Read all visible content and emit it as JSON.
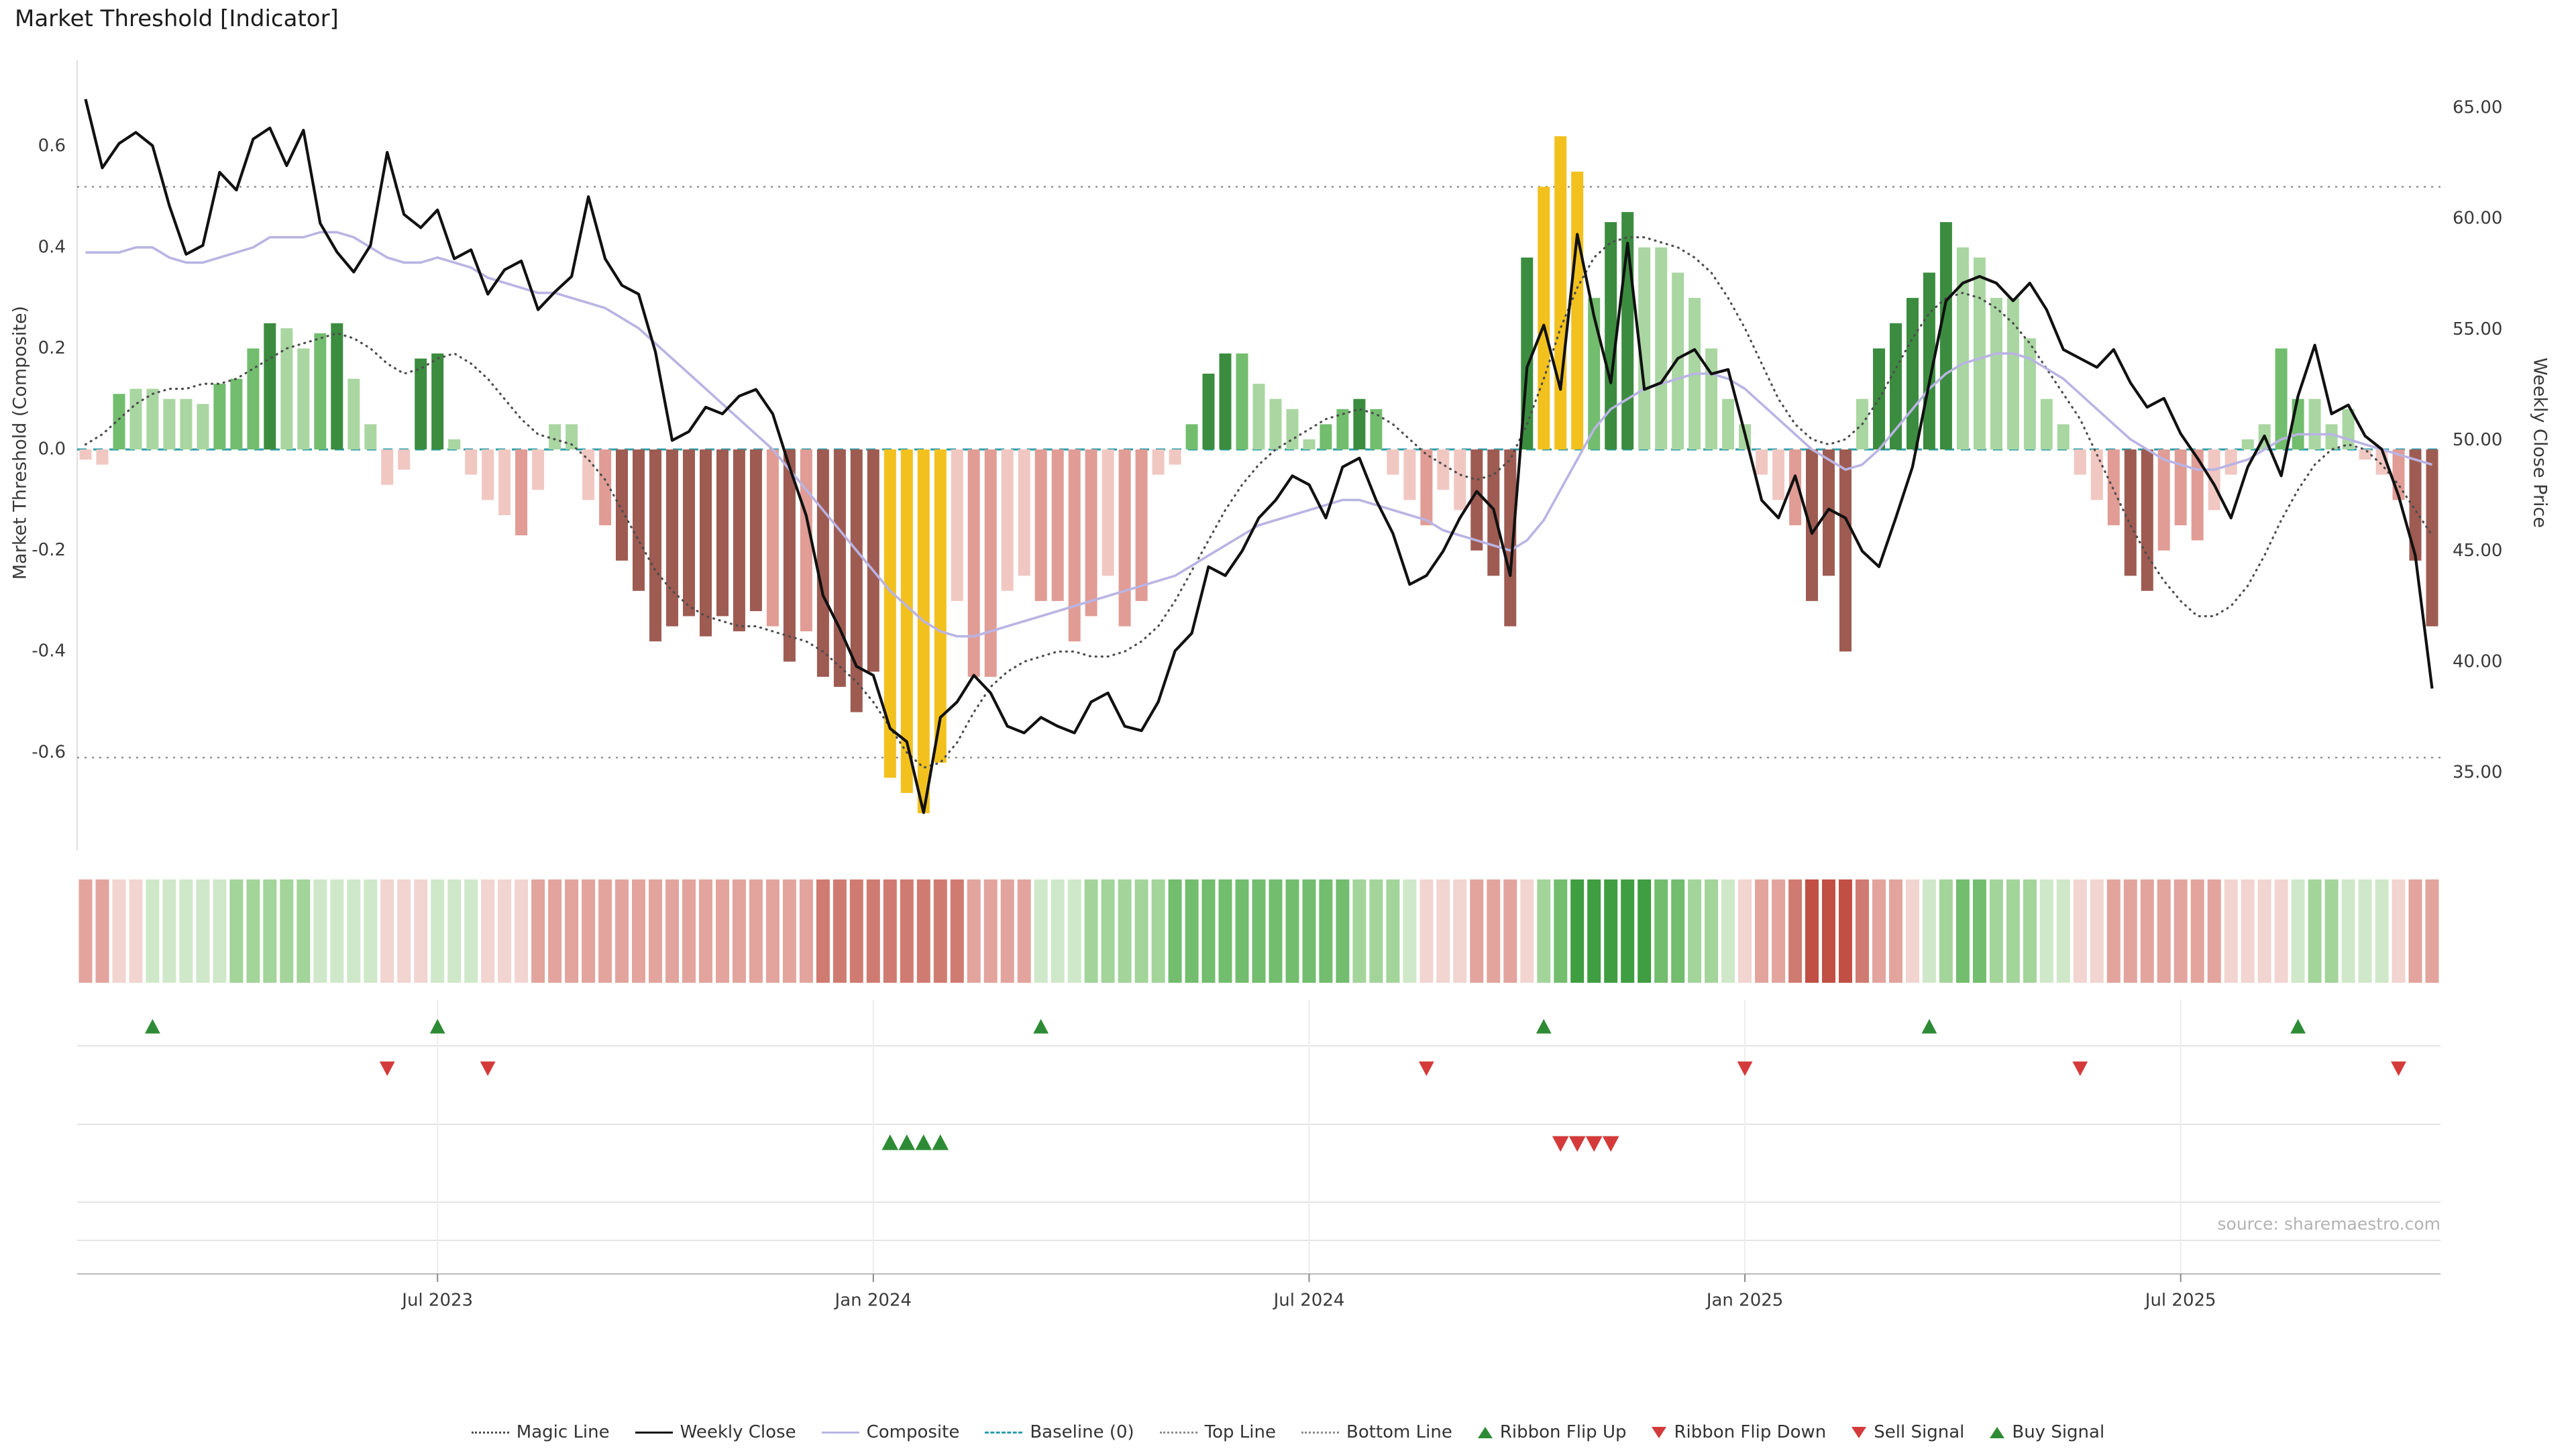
{
  "title": "Market Threshold [Indicator]",
  "source": "source: sharemaestro.com",
  "colors": {
    "bars": {
      "lg": "#a9d6a1",
      "g": "#72bd6e",
      "dg": "#3b8c3f",
      "lp": "#f1c7c2",
      "p": "#e09c95",
      "dp": "#9e5b52",
      "au": "#f2c11e"
    },
    "ribbon": {
      "1": "#cfe8c9",
      "2": "#a3d49a",
      "3": "#72bd6e",
      "4": "#3f9e41",
      "-1": "#f2d4d0",
      "-2": "#e2a49d",
      "-3": "#d07b71",
      "-4": "#c14f44"
    },
    "weekly_close": "#111111",
    "composite": "#b9b4e3",
    "magic": "#4d4d4d",
    "baseline": "#2e9eaa",
    "top_bottom": "#8c8c8c",
    "buy": "#2e8b35",
    "sell": "#d43a3a",
    "grid": "#e4e4e4",
    "axis": "#bbbbbb"
  },
  "legend": [
    {
      "label": "Magic Line",
      "marker": "line-dotted",
      "color": "#4d4d4d"
    },
    {
      "label": "Weekly Close",
      "marker": "line-solid",
      "color": "#111111"
    },
    {
      "label": "Composite",
      "marker": "line-solid",
      "color": "#b9b4e3"
    },
    {
      "label": "Baseline (0)",
      "marker": "line-dashed",
      "color": "#2e9eaa"
    },
    {
      "label": "Top Line",
      "marker": "line-dotted",
      "color": "#8c8c8c"
    },
    {
      "label": "Bottom Line",
      "marker": "line-dotted",
      "color": "#8c8c8c"
    },
    {
      "label": "Ribbon Flip Up",
      "marker": "triangle-up",
      "color": "#2e8b35"
    },
    {
      "label": "Ribbon Flip Down",
      "marker": "triangle-down",
      "color": "#d43a3a"
    },
    {
      "label": "Sell Signal",
      "marker": "triangle-down",
      "color": "#d43a3a"
    },
    {
      "label": "Buy Signal",
      "marker": "triangle-up",
      "color": "#2e8b35"
    }
  ],
  "chart_data": {
    "type": "bar+line",
    "title": "Market Threshold [Indicator]",
    "frequency": "weekly",
    "x_tick_labels": [
      "Jul 2023",
      "Jan 2024",
      "Jul 2024",
      "Jan 2025",
      "Jul 2025"
    ],
    "x_tick_indices": [
      21,
      47,
      73,
      99,
      125
    ],
    "left_axis": {
      "label": "Market Threshold (Composite)",
      "tick_values": [
        0.6,
        0.4,
        0.2,
        0,
        -0.2,
        -0.4,
        -0.6
      ],
      "tick_labels": [
        "0.6",
        "0.4",
        "0.2",
        "0.0",
        "-0.2",
        "-0.4",
        "-0.6"
      ],
      "range": [
        -0.79,
        0.73
      ]
    },
    "right_axis": {
      "label": "Weekly Close Price",
      "tick_values": [
        65,
        60,
        55,
        50,
        45,
        40,
        35
      ],
      "tick_labels": [
        "65.00",
        "60.00",
        "55.00",
        "50.00",
        "45.00",
        "40.00",
        "35.00"
      ],
      "range": [
        32.5,
        66.5
      ]
    },
    "reference_lines": {
      "top_line": 0.52,
      "bottom_line": -0.61,
      "baseline": 0
    },
    "composite_bars": {
      "values": [
        -0.02,
        -0.03,
        0.11,
        0.12,
        0.12,
        0.1,
        0.1,
        0.09,
        0.13,
        0.14,
        0.2,
        0.25,
        0.24,
        0.2,
        0.23,
        0.25,
        0.14,
        0.05,
        -0.07,
        -0.04,
        0.18,
        0.19,
        0.02,
        -0.05,
        -0.1,
        -0.13,
        -0.17,
        -0.08,
        0.05,
        0.05,
        -0.1,
        -0.15,
        -0.22,
        -0.28,
        -0.38,
        -0.35,
        -0.33,
        -0.37,
        -0.33,
        -0.36,
        -0.32,
        -0.35,
        -0.42,
        -0.36,
        -0.45,
        -0.47,
        -0.52,
        -0.44,
        -0.65,
        -0.68,
        -0.72,
        -0.62,
        -0.3,
        -0.45,
        -0.45,
        -0.28,
        -0.25,
        -0.3,
        -0.3,
        -0.38,
        -0.33,
        -0.25,
        -0.35,
        -0.3,
        -0.05,
        -0.03,
        0.05,
        0.15,
        0.19,
        0.19,
        0.13,
        0.1,
        0.08,
        0.02,
        0.05,
        0.08,
        0.1,
        0.08,
        -0.05,
        -0.1,
        -0.15,
        -0.08,
        -0.12,
        -0.2,
        -0.25,
        -0.35,
        0.38,
        0.52,
        0.62,
        0.55,
        0.3,
        0.45,
        0.47,
        0.4,
        0.4,
        0.35,
        0.3,
        0.2,
        0.1,
        0.05,
        -0.05,
        -0.1,
        -0.15,
        -0.3,
        -0.25,
        -0.4,
        0.1,
        0.2,
        0.25,
        0.3,
        0.35,
        0.45,
        0.4,
        0.38,
        0.3,
        0.3,
        0.22,
        0.1,
        0.05,
        -0.05,
        -0.1,
        -0.15,
        -0.25,
        -0.28,
        -0.2,
        -0.15,
        -0.18,
        -0.12,
        -0.05,
        0.02,
        0.05,
        0.2,
        0.1,
        0.1,
        0.05,
        0.08,
        -0.02,
        -0.05,
        -0.1,
        -0.22,
        -0.35
      ],
      "colors": [
        "lp",
        "lp",
        "g",
        "lg",
        "lg",
        "lg",
        "lg",
        "lg",
        "g",
        "g",
        "g",
        "dg",
        "lg",
        "lg",
        "g",
        "dg",
        "lg",
        "lg",
        "lp",
        "lp",
        "dg",
        "dg",
        "lg",
        "lp",
        "lp",
        "lp",
        "p",
        "lp",
        "lg",
        "lg",
        "lp",
        "p",
        "dp",
        "dp",
        "dp",
        "dp",
        "dp",
        "dp",
        "dp",
        "dp",
        "dp",
        "p",
        "dp",
        "p",
        "dp",
        "dp",
        "dp",
        "dp",
        "au",
        "au",
        "au",
        "au",
        "lp",
        "p",
        "p",
        "lp",
        "lp",
        "p",
        "p",
        "p",
        "p",
        "lp",
        "p",
        "p",
        "lp",
        "lp",
        "g",
        "dg",
        "dg",
        "g",
        "lg",
        "lg",
        "lg",
        "lg",
        "g",
        "g",
        "dg",
        "g",
        "lp",
        "lp",
        "p",
        "lp",
        "lp",
        "dp",
        "dp",
        "dp",
        "dg",
        "au",
        "au",
        "au",
        "g",
        "dg",
        "dg",
        "lg",
        "lg",
        "lg",
        "lg",
        "lg",
        "lg",
        "lg",
        "lp",
        "lp",
        "p",
        "dp",
        "dp",
        "dp",
        "lg",
        "dg",
        "dg",
        "dg",
        "dg",
        "dg",
        "lg",
        "lg",
        "lg",
        "lg",
        "lg",
        "lg",
        "lg",
        "lp",
        "lp",
        "p",
        "dp",
        "dp",
        "p",
        "p",
        "p",
        "lp",
        "lp",
        "lg",
        "lg",
        "g",
        "g",
        "lg",
        "lg",
        "lg",
        "lp",
        "lp",
        "p",
        "dp",
        "dp"
      ]
    },
    "weekly_close": [
      65.4,
      62.3,
      63.4,
      63.9,
      63.3,
      60.6,
      58.4,
      58.8,
      62.1,
      61.3,
      63.6,
      64.1,
      62.4,
      64.0,
      59.8,
      58.5,
      57.6,
      58.8,
      63.0,
      60.2,
      59.6,
      60.4,
      58.2,
      58.6,
      56.6,
      57.7,
      58.1,
      55.9,
      56.7,
      57.4,
      61.0,
      58.2,
      57.0,
      56.6,
      54.0,
      50.0,
      50.4,
      51.5,
      51.2,
      52.0,
      52.3,
      51.2,
      48.8,
      46.6,
      43.0,
      41.5,
      39.8,
      39.4,
      37.0,
      36.4,
      33.2,
      37.5,
      38.2,
      39.4,
      38.6,
      37.1,
      36.8,
      37.5,
      37.1,
      36.8,
      38.2,
      38.6,
      37.1,
      36.9,
      38.2,
      40.5,
      41.3,
      44.3,
      43.9,
      45.0,
      46.5,
      47.3,
      48.4,
      48.0,
      46.5,
      48.8,
      49.2,
      47.3,
      45.8,
      43.5,
      43.9,
      45.0,
      46.5,
      47.7,
      46.9,
      43.9,
      53.3,
      55.2,
      52.3,
      59.3,
      55.6,
      52.6,
      58.9,
      52.3,
      52.6,
      53.7,
      54.1,
      53.0,
      53.2,
      50.3,
      47.3,
      46.5,
      48.4,
      45.8,
      46.9,
      46.5,
      45.0,
      44.3,
      46.5,
      48.8,
      52.6,
      56.3,
      57.1,
      57.4,
      57.1,
      56.3,
      57.1,
      55.9,
      54.1,
      53.7,
      53.3,
      54.1,
      52.6,
      51.5,
      51.9,
      50.3,
      49.2,
      48.0,
      46.5,
      48.8,
      50.2,
      48.4,
      52.0,
      54.3,
      51.2,
      51.6,
      50.2,
      49.6,
      47.5,
      44.8,
      38.8
    ],
    "composite_line": [
      0.39,
      0.39,
      0.39,
      0.4,
      0.4,
      0.38,
      0.37,
      0.37,
      0.38,
      0.39,
      0.4,
      0.42,
      0.42,
      0.42,
      0.43,
      0.43,
      0.42,
      0.4,
      0.38,
      0.37,
      0.37,
      0.38,
      0.37,
      0.36,
      0.34,
      0.33,
      0.32,
      0.31,
      0.31,
      0.3,
      0.29,
      0.28,
      0.26,
      0.24,
      0.21,
      0.18,
      0.15,
      0.12,
      0.09,
      0.06,
      0.03,
      0.0,
      -0.04,
      -0.08,
      -0.12,
      -0.16,
      -0.2,
      -0.24,
      -0.28,
      -0.31,
      -0.34,
      -0.36,
      -0.37,
      -0.37,
      -0.36,
      -0.35,
      -0.34,
      -0.33,
      -0.32,
      -0.31,
      -0.3,
      -0.29,
      -0.28,
      -0.27,
      -0.26,
      -0.25,
      -0.23,
      -0.21,
      -0.19,
      -0.17,
      -0.15,
      -0.14,
      -0.13,
      -0.12,
      -0.11,
      -0.1,
      -0.1,
      -0.11,
      -0.12,
      -0.13,
      -0.14,
      -0.16,
      -0.17,
      -0.18,
      -0.19,
      -0.2,
      -0.18,
      -0.14,
      -0.08,
      -0.02,
      0.04,
      0.08,
      0.1,
      0.12,
      0.13,
      0.14,
      0.15,
      0.15,
      0.14,
      0.12,
      0.09,
      0.06,
      0.03,
      0.0,
      -0.02,
      -0.04,
      -0.03,
      0.0,
      0.04,
      0.08,
      0.12,
      0.15,
      0.17,
      0.18,
      0.19,
      0.19,
      0.18,
      0.16,
      0.14,
      0.11,
      0.08,
      0.05,
      0.02,
      0.0,
      -0.02,
      -0.03,
      -0.04,
      -0.04,
      -0.03,
      -0.02,
      0.0,
      0.02,
      0.03,
      0.03,
      0.03,
      0.02,
      0.01,
      0.0,
      -0.01,
      -0.02,
      -0.03
    ],
    "magic_line": [
      0.01,
      0.03,
      0.06,
      0.09,
      0.11,
      0.12,
      0.12,
      0.13,
      0.13,
      0.14,
      0.16,
      0.18,
      0.2,
      0.21,
      0.22,
      0.23,
      0.22,
      0.2,
      0.17,
      0.15,
      0.16,
      0.18,
      0.19,
      0.17,
      0.14,
      0.1,
      0.06,
      0.03,
      0.02,
      0.01,
      -0.02,
      -0.06,
      -0.12,
      -0.18,
      -0.24,
      -0.28,
      -0.31,
      -0.33,
      -0.34,
      -0.35,
      -0.35,
      -0.36,
      -0.37,
      -0.38,
      -0.4,
      -0.43,
      -0.46,
      -0.5,
      -0.55,
      -0.6,
      -0.63,
      -0.62,
      -0.58,
      -0.52,
      -0.47,
      -0.44,
      -0.42,
      -0.41,
      -0.4,
      -0.4,
      -0.41,
      -0.41,
      -0.4,
      -0.38,
      -0.35,
      -0.3,
      -0.24,
      -0.18,
      -0.12,
      -0.07,
      -0.03,
      0.0,
      0.02,
      0.04,
      0.06,
      0.07,
      0.08,
      0.07,
      0.05,
      0.02,
      -0.01,
      -0.03,
      -0.05,
      -0.06,
      -0.05,
      -0.02,
      0.05,
      0.14,
      0.24,
      0.32,
      0.38,
      0.41,
      0.42,
      0.42,
      0.41,
      0.4,
      0.38,
      0.35,
      0.3,
      0.24,
      0.17,
      0.1,
      0.05,
      0.02,
      0.01,
      0.02,
      0.05,
      0.1,
      0.16,
      0.22,
      0.27,
      0.3,
      0.31,
      0.3,
      0.28,
      0.25,
      0.21,
      0.16,
      0.11,
      0.06,
      -0.01,
      -0.08,
      -0.15,
      -0.21,
      -0.26,
      -0.3,
      -0.33,
      -0.33,
      -0.31,
      -0.27,
      -0.21,
      -0.14,
      -0.08,
      -0.03,
      0.0,
      0.01,
      0.0,
      -0.03,
      -0.07,
      -0.12,
      -0.17
    ],
    "ribbon": [
      -2,
      -2,
      -1,
      -1,
      1,
      1,
      1,
      1,
      1,
      2,
      2,
      2,
      2,
      2,
      1,
      1,
      1,
      1,
      -1,
      -1,
      -1,
      1,
      1,
      1,
      -1,
      -1,
      -1,
      -2,
      -2,
      -2,
      -2,
      -2,
      -2,
      -2,
      -2,
      -2,
      -2,
      -2,
      -2,
      -2,
      -2,
      -2,
      -2,
      -2,
      -3,
      -3,
      -3,
      -3,
      -3,
      -3,
      -3,
      -3,
      -3,
      -2,
      -2,
      -2,
      -2,
      1,
      1,
      1,
      2,
      2,
      2,
      2,
      2,
      3,
      3,
      3,
      3,
      3,
      3,
      3,
      3,
      3,
      3,
      3,
      2,
      2,
      2,
      1,
      -1,
      -1,
      -1,
      -2,
      -2,
      -2,
      -1,
      2,
      3,
      4,
      4,
      4,
      4,
      4,
      3,
      3,
      2,
      2,
      1,
      -1,
      -2,
      -2,
      -3,
      -4,
      -4,
      -4,
      -3,
      -2,
      -2,
      -1,
      1,
      2,
      3,
      3,
      2,
      2,
      2,
      1,
      1,
      -1,
      -1,
      -2,
      -2,
      -2,
      -2,
      -2,
      -2,
      -2,
      -1,
      -1,
      -1,
      -1,
      1,
      2,
      2,
      1,
      1,
      1,
      -1,
      -2,
      -2
    ],
    "signals": {
      "ribbon_flip_up": [
        4,
        21,
        57,
        87,
        110,
        132
      ],
      "ribbon_flip_down": [
        18,
        24,
        80,
        99,
        119,
        138
      ],
      "buy": [
        48,
        49,
        50,
        51
      ],
      "sell": [
        88,
        89,
        90,
        91
      ]
    },
    "legend_position": "bottom-center",
    "grid": "signal-rows-only"
  }
}
